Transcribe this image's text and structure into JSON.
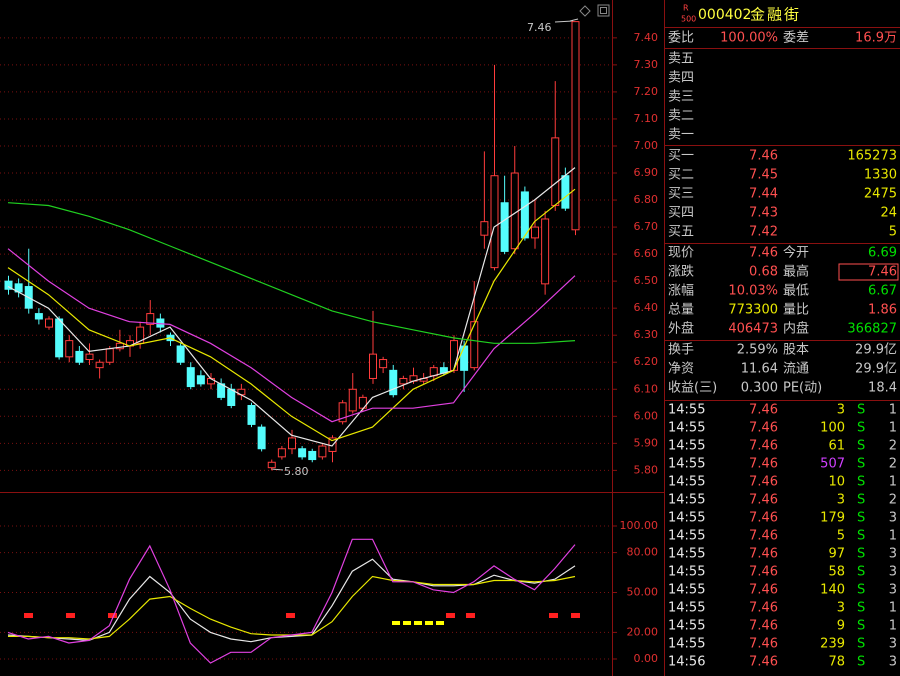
{
  "price_chart": {
    "type": "candlestick",
    "candles": [
      {
        "open": 6.5,
        "high": 6.52,
        "low": 6.45,
        "close": 6.47
      },
      {
        "open": 6.49,
        "high": 6.51,
        "low": 6.44,
        "close": 6.46
      },
      {
        "open": 6.48,
        "high": 6.62,
        "low": 6.38,
        "close": 6.4
      },
      {
        "open": 6.38,
        "high": 6.4,
        "low": 6.34,
        "close": 6.36
      },
      {
        "open": 6.33,
        "high": 6.37,
        "low": 6.32,
        "close": 6.36
      },
      {
        "open": 6.36,
        "high": 6.37,
        "low": 6.21,
        "close": 6.22
      },
      {
        "open": 6.22,
        "high": 6.3,
        "low": 6.2,
        "close": 6.28
      },
      {
        "open": 6.24,
        "high": 6.26,
        "low": 6.19,
        "close": 6.2
      },
      {
        "open": 6.21,
        "high": 6.27,
        "low": 6.19,
        "close": 6.23
      },
      {
        "open": 6.18,
        "high": 6.21,
        "low": 6.14,
        "close": 6.2
      },
      {
        "open": 6.2,
        "high": 6.26,
        "low": 6.19,
        "close": 6.25
      },
      {
        "open": 6.25,
        "high": 6.32,
        "low": 6.24,
        "close": 6.27
      },
      {
        "open": 6.26,
        "high": 6.3,
        "low": 6.22,
        "close": 6.28
      },
      {
        "open": 6.27,
        "high": 6.35,
        "low": 6.25,
        "close": 6.33
      },
      {
        "open": 6.34,
        "high": 6.43,
        "low": 6.3,
        "close": 6.38
      },
      {
        "open": 6.36,
        "high": 6.38,
        "low": 6.31,
        "close": 6.33
      },
      {
        "open": 6.3,
        "high": 6.31,
        "low": 6.26,
        "close": 6.28
      },
      {
        "open": 6.26,
        "high": 6.27,
        "low": 6.19,
        "close": 6.2
      },
      {
        "open": 6.18,
        "high": 6.2,
        "low": 6.1,
        "close": 6.11
      },
      {
        "open": 6.15,
        "high": 6.17,
        "low": 6.11,
        "close": 6.12
      },
      {
        "open": 6.12,
        "high": 6.16,
        "low": 6.1,
        "close": 6.14
      },
      {
        "open": 6.12,
        "high": 6.14,
        "low": 6.06,
        "close": 6.07
      },
      {
        "open": 6.1,
        "high": 6.12,
        "low": 6.03,
        "close": 6.04
      },
      {
        "open": 6.08,
        "high": 6.12,
        "low": 6.06,
        "close": 6.1
      },
      {
        "open": 6.04,
        "high": 6.05,
        "low": 5.96,
        "close": 5.97
      },
      {
        "open": 5.96,
        "high": 5.97,
        "low": 5.87,
        "close": 5.88
      },
      {
        "open": 5.81,
        "high": 5.84,
        "low": 5.8,
        "close": 5.83
      },
      {
        "open": 5.85,
        "high": 5.89,
        "low": 5.84,
        "close": 5.88
      },
      {
        "open": 5.88,
        "high": 5.95,
        "low": 5.86,
        "close": 5.92
      },
      {
        "open": 5.88,
        "high": 5.89,
        "low": 5.84,
        "close": 5.85
      },
      {
        "open": 5.87,
        "high": 5.88,
        "low": 5.83,
        "close": 5.84
      },
      {
        "open": 5.85,
        "high": 5.9,
        "low": 5.84,
        "close": 5.89
      },
      {
        "open": 5.87,
        "high": 5.93,
        "low": 5.83,
        "close": 5.92
      },
      {
        "open": 5.98,
        "high": 6.06,
        "low": 5.97,
        "close": 6.05
      },
      {
        "open": 6.02,
        "high": 6.16,
        "low": 6.01,
        "close": 6.1
      },
      {
        "open": 6.03,
        "high": 6.08,
        "low": 6.02,
        "close": 6.07
      },
      {
        "open": 6.14,
        "high": 6.39,
        "low": 6.12,
        "close": 6.23
      },
      {
        "open": 6.18,
        "high": 6.22,
        "low": 6.16,
        "close": 6.21
      },
      {
        "open": 6.17,
        "high": 6.19,
        "low": 6.07,
        "close": 6.08
      },
      {
        "open": 6.12,
        "high": 6.15,
        "low": 6.1,
        "close": 6.14
      },
      {
        "open": 6.13,
        "high": 6.18,
        "low": 6.12,
        "close": 6.15
      },
      {
        "open": 6.13,
        "high": 6.16,
        "low": 6.12,
        "close": 6.14
      },
      {
        "open": 6.15,
        "high": 6.19,
        "low": 6.13,
        "close": 6.18
      },
      {
        "open": 6.18,
        "high": 6.2,
        "low": 6.15,
        "close": 6.16
      },
      {
        "open": 6.17,
        "high": 6.3,
        "low": 6.16,
        "close": 6.28
      },
      {
        "open": 6.26,
        "high": 6.28,
        "low": 6.09,
        "close": 6.17
      },
      {
        "open": 6.18,
        "high": 6.5,
        "low": 6.17,
        "close": 6.35
      },
      {
        "open": 6.67,
        "high": 6.98,
        "low": 6.62,
        "close": 6.72
      },
      {
        "open": 6.55,
        "high": 7.3,
        "low": 6.54,
        "close": 6.89
      },
      {
        "open": 6.79,
        "high": 6.89,
        "low": 6.6,
        "close": 6.61
      },
      {
        "open": 6.62,
        "high": 7.0,
        "low": 6.6,
        "close": 6.9
      },
      {
        "open": 6.83,
        "high": 6.85,
        "low": 6.65,
        "close": 6.66
      },
      {
        "open": 6.66,
        "high": 6.8,
        "low": 6.62,
        "close": 6.7
      },
      {
        "open": 6.49,
        "high": 6.76,
        "low": 6.45,
        "close": 6.73
      },
      {
        "open": 6.78,
        "high": 7.24,
        "low": 6.76,
        "close": 7.03
      },
      {
        "open": 6.89,
        "high": 6.92,
        "low": 6.76,
        "close": 6.77
      },
      {
        "open": 6.69,
        "high": 7.46,
        "low": 6.67,
        "close": 7.46
      }
    ],
    "up_color": "#ff3c3c",
    "down_color": "#54fcfc",
    "ma_x": [
      0,
      4,
      8,
      12,
      16,
      20,
      24,
      28,
      32,
      36,
      40,
      44,
      48,
      52,
      56
    ],
    "ma_lines": [
      {
        "color": "#e8e8e8",
        "values": [
          6.48,
          6.4,
          6.24,
          6.26,
          6.33,
          6.14,
          6.06,
          5.93,
          5.89,
          6.07,
          6.13,
          6.17,
          6.7,
          6.8,
          6.92
        ]
      },
      {
        "color": "#e8e800",
        "values": [
          6.55,
          6.45,
          6.32,
          6.26,
          6.29,
          6.22,
          6.12,
          6.0,
          5.91,
          5.96,
          6.1,
          6.17,
          6.5,
          6.72,
          6.84
        ]
      },
      {
        "color": "#e040e0",
        "values": [
          6.62,
          6.5,
          6.4,
          6.35,
          6.34,
          6.27,
          6.18,
          6.07,
          5.98,
          6.03,
          6.03,
          6.05,
          6.25,
          6.38,
          6.52
        ]
      },
      {
        "color": "#20d020",
        "values": [
          6.79,
          6.78,
          6.74,
          6.69,
          6.63,
          6.57,
          6.51,
          6.45,
          6.39,
          6.35,
          6.32,
          6.29,
          6.27,
          6.27,
          6.28
        ]
      }
    ],
    "ylim": [
      5.72,
      7.54
    ],
    "yticks": [
      {
        "value": 7.4,
        "label": "7.40"
      },
      {
        "value": 7.3,
        "label": "7.30"
      },
      {
        "value": 7.2,
        "label": "7.20"
      },
      {
        "value": 7.1,
        "label": "7.10"
      },
      {
        "value": 7.0,
        "label": "7.00"
      },
      {
        "value": 6.9,
        "label": "6.90"
      },
      {
        "value": 6.8,
        "label": "6.80"
      },
      {
        "value": 6.7,
        "label": "6.70"
      },
      {
        "value": 6.6,
        "label": "6.60"
      },
      {
        "value": 6.5,
        "label": "6.50"
      },
      {
        "value": 6.4,
        "label": "6.40"
      },
      {
        "value": 6.3,
        "label": "6.30"
      },
      {
        "value": 6.2,
        "label": "6.20"
      },
      {
        "value": 6.1,
        "label": "6.10"
      },
      {
        "value": 6.0,
        "label": "6.00"
      },
      {
        "value": 5.9,
        "label": "5.90"
      },
      {
        "value": 5.8,
        "label": "5.80"
      }
    ],
    "grid": true,
    "annotations": [
      "7.46",
      "5.80"
    ]
  },
  "indicator_chart": {
    "type": "line",
    "x": [
      0,
      2,
      4,
      6,
      8,
      10,
      12,
      14,
      16,
      18,
      20,
      22,
      24,
      26,
      28,
      30,
      32,
      34,
      36,
      38,
      40,
      42,
      44,
      46,
      48,
      50,
      52,
      54,
      56
    ],
    "series": [
      {
        "color": "#e8e8e8",
        "values": [
          18,
          17,
          16,
          15,
          14,
          20,
          45,
          62,
          50,
          30,
          20,
          15,
          13,
          16,
          17,
          18,
          40,
          66,
          75,
          60,
          58,
          55,
          55,
          56,
          63,
          59,
          57,
          60,
          70
        ]
      },
      {
        "color": "#e8e800",
        "values": [
          17,
          17,
          16,
          16,
          15,
          17,
          30,
          45,
          47,
          38,
          30,
          24,
          19,
          18,
          18,
          18,
          28,
          47,
          62,
          59,
          58,
          56,
          56,
          56,
          59,
          59,
          58,
          59,
          62
        ]
      },
      {
        "color": "#e040e0",
        "values": [
          20,
          15,
          17,
          12,
          14,
          25,
          60,
          85,
          52,
          12,
          -3,
          5,
          5,
          16,
          18,
          20,
          50,
          90,
          90,
          58,
          58,
          52,
          50,
          58,
          70,
          60,
          52,
          68,
          86
        ]
      }
    ],
    "ylim": [
      -12.8,
      124.8
    ],
    "yticks": [
      {
        "value": 100,
        "label": "100.00"
      },
      {
        "value": 80,
        "label": "80.00"
      },
      {
        "value": 50,
        "label": "50.00"
      },
      {
        "value": 20,
        "label": "20.00"
      },
      {
        "value": 0,
        "label": "0.00"
      }
    ],
    "grid": true
  },
  "quote": {
    "badge_top": "R",
    "badge_bottom": "500",
    "code": "000402",
    "name": "金融街",
    "ratio": [
      "委比",
      "100.00%",
      "委差",
      "16.9万"
    ],
    "sell": [
      "卖五",
      "卖四",
      "卖三",
      "卖二",
      "卖一"
    ],
    "buy": [
      [
        "买一",
        "7.46",
        "165273"
      ],
      [
        "买二",
        "7.45",
        "1330"
      ],
      [
        "买三",
        "7.44",
        "2475"
      ],
      [
        "买四",
        "7.43",
        "24"
      ],
      [
        "买五",
        "7.42",
        "5"
      ]
    ],
    "stats": [
      [
        "现价",
        "7.46",
        "今开",
        "6.69"
      ],
      [
        "涨跌",
        "0.68",
        "最高",
        "7.46"
      ],
      [
        "涨幅",
        "10.03%",
        "最低",
        "6.67"
      ],
      [
        "总量",
        "773300",
        "量比",
        "1.86"
      ],
      [
        "外盘",
        "406473",
        "内盘",
        "366827"
      ]
    ],
    "info": [
      [
        "换手",
        "2.59%",
        "股本",
        "29.9亿"
      ],
      [
        "净资",
        "11.64",
        "流通",
        "29.9亿"
      ],
      [
        "收益(三)",
        "0.300",
        "PE(动)",
        "18.4"
      ]
    ],
    "trades": [
      [
        "14:55",
        "7.46",
        "3",
        "S",
        "1"
      ],
      [
        "14:55",
        "7.46",
        "100",
        "S",
        "1"
      ],
      [
        "14:55",
        "7.46",
        "61",
        "S",
        "2"
      ],
      [
        "14:55",
        "7.46",
        "507",
        "S",
        "2"
      ],
      [
        "14:55",
        "7.46",
        "10",
        "S",
        "1"
      ],
      [
        "14:55",
        "7.46",
        "3",
        "S",
        "2"
      ],
      [
        "14:55",
        "7.46",
        "179",
        "S",
        "3"
      ],
      [
        "14:55",
        "7.46",
        "5",
        "S",
        "1"
      ],
      [
        "14:55",
        "7.46",
        "97",
        "S",
        "3"
      ],
      [
        "14:55",
        "7.46",
        "58",
        "S",
        "3"
      ],
      [
        "14:55",
        "7.46",
        "140",
        "S",
        "3"
      ],
      [
        "14:55",
        "7.46",
        "3",
        "S",
        "1"
      ],
      [
        "14:55",
        "7.46",
        "9",
        "S",
        "1"
      ],
      [
        "14:55",
        "7.46",
        "239",
        "S",
        "3"
      ],
      [
        "14:56",
        "7.46",
        "78",
        "S",
        "3"
      ]
    ],
    "big_trade_color": "#d040ff"
  }
}
